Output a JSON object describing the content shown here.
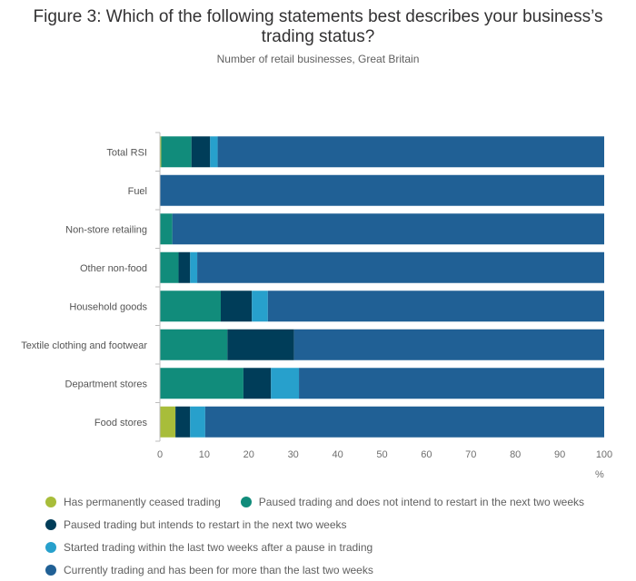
{
  "title": "Figure 3: Which of the following statements best describes your business’s trading status?",
  "subtitle": "Number of retail businesses, Great Britain",
  "chart_data": {
    "type": "bar",
    "orientation": "horizontal",
    "stacked": true,
    "categories": [
      "Total RSI",
      "Fuel",
      "Non-store retailing",
      "Other non-food",
      "Household goods",
      "Textile clothing and footwear",
      "Department stores",
      "Food stores"
    ],
    "series": [
      {
        "name": "Has permanently ceased trading",
        "color": "#a8bd3a",
        "values": [
          0.3,
          0,
          0,
          0,
          0,
          0,
          0,
          3.5
        ]
      },
      {
        "name": "Paused trading and does not intend to restart in the next two weeks",
        "color": "#118c7b",
        "values": [
          6.8,
          0,
          2.8,
          4.2,
          13.7,
          15.2,
          18.8,
          0
        ]
      },
      {
        "name": "Paused trading but intends to restart in the next two weeks",
        "color": "#003d59",
        "values": [
          4.2,
          0,
          0,
          2.6,
          7,
          15,
          6.2,
          3.3
        ]
      },
      {
        "name": "Started trading within the last two weeks after a pause in trading",
        "color": "#27a0cc",
        "values": [
          1.7,
          0,
          0,
          1.6,
          3.6,
          0,
          6.3,
          3.4
        ]
      },
      {
        "name": "Currently trading and has been for more than the last two weeks",
        "color": "#206095",
        "values": [
          87,
          100,
          97.2,
          91.6,
          75.7,
          69.8,
          68.7,
          89.8
        ]
      }
    ],
    "xlim": [
      0,
      100
    ],
    "xticks": [
      "0",
      "10",
      "20",
      "30",
      "40",
      "50",
      "60",
      "70",
      "80",
      "90",
      "100"
    ],
    "xunit": "%",
    "legend_position": "bottom"
  }
}
